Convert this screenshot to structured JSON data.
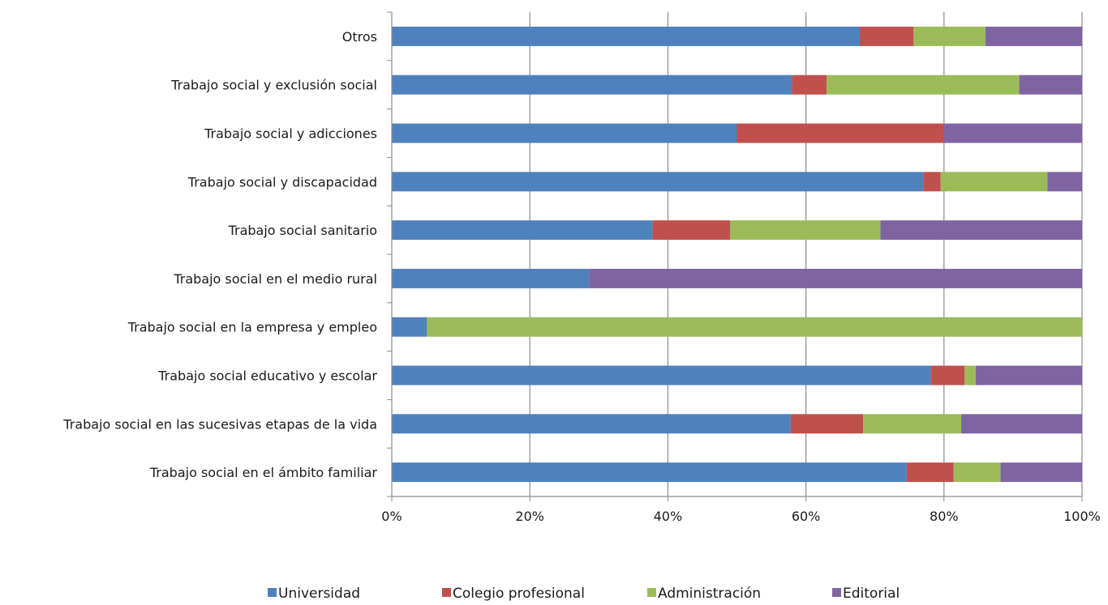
{
  "chart_data": {
    "type": "bar",
    "orientation": "horizontal",
    "stacked": "percent",
    "categories": [
      "Trabajo social en el ámbito familiar",
      "Trabajo social en las sucesivas etapas de la vida",
      "Trabajo social educativo y escolar",
      "Trabajo social en la empresa y empleo",
      "Trabajo social en el medio rural",
      "Trabajo social sanitario",
      "Trabajo social y discapacidad",
      "Trabajo social y adicciones",
      "Trabajo social y exclusión social",
      "Otros"
    ],
    "series": [
      {
        "name": "Universidad",
        "color": "#4f81bd",
        "values": [
          74.6,
          57.8,
          78.1,
          5.1,
          28.6,
          37.8,
          77.0,
          50.0,
          58.0,
          67.8
        ]
      },
      {
        "name": "Colegio profesional",
        "color": "#c0504d",
        "values": [
          6.8,
          10.5,
          4.9,
          0.0,
          0.0,
          11.2,
          2.5,
          30.0,
          5.0,
          7.8
        ]
      },
      {
        "name": "Administración",
        "color": "#9bbb59",
        "values": [
          6.8,
          14.2,
          1.6,
          94.9,
          0.0,
          21.8,
          15.5,
          0.0,
          27.9,
          10.4
        ]
      },
      {
        "name": "Editorial",
        "color": "#8064a2",
        "values": [
          11.8,
          17.5,
          15.4,
          0.0,
          71.4,
          29.2,
          5.0,
          20.0,
          9.1,
          14.0
        ]
      }
    ],
    "x_ticks": [
      "0%",
      "20%",
      "40%",
      "60%",
      "80%",
      "100%"
    ],
    "xlim": [
      0,
      100
    ],
    "grid": "vertical",
    "legend": "bottom"
  }
}
